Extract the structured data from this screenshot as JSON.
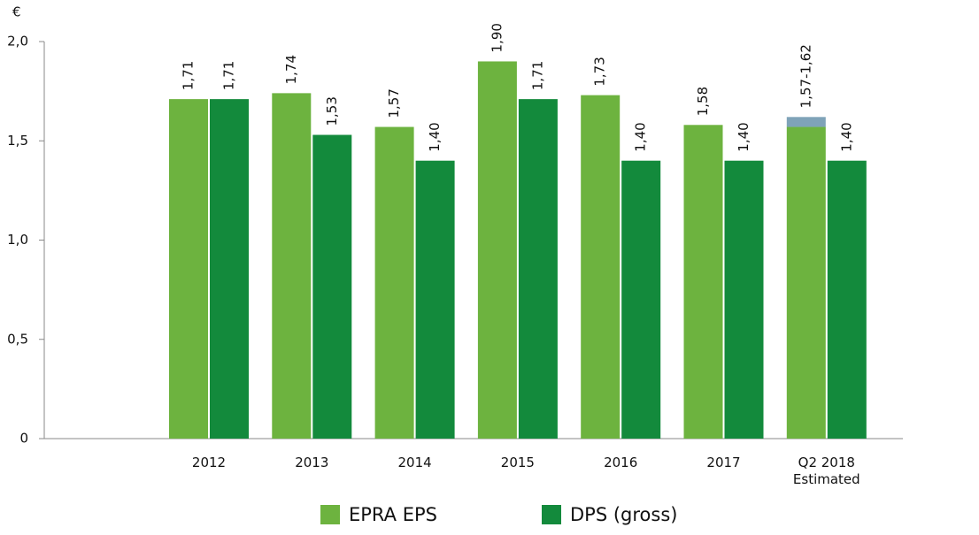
{
  "chart_data": {
    "type": "bar",
    "unit": "€",
    "categories": [
      "2012",
      "2013",
      "2014",
      "2015",
      "2016",
      "2017",
      "Q2 2018\nEstimated"
    ],
    "series": [
      {
        "name": "EPRA EPS",
        "color": "#6db33f",
        "values": [
          1.71,
          1.74,
          1.57,
          1.9,
          1.73,
          1.58,
          1.57
        ],
        "value_labels": [
          "1,71",
          "1,74",
          "1,57",
          "1,90",
          "1,73",
          "1,58",
          "1,57-1,62"
        ]
      },
      {
        "name": "DPS (gross)",
        "color": "#138a3c",
        "values": [
          1.71,
          1.53,
          1.4,
          1.71,
          1.4,
          1.4,
          1.4
        ],
        "value_labels": [
          "1,71",
          "1,53",
          "1,40",
          "1,71",
          "1,40",
          "1,40",
          "1,40"
        ]
      },
      {
        "color": "#7fa3b8",
        "stack_on": 0,
        "values": [
          null,
          null,
          null,
          null,
          null,
          null,
          0.05
        ]
      }
    ],
    "ylim": [
      0,
      2.0
    ],
    "yticks": [
      0,
      {
        "value": 0.5,
        "label": "0,5"
      },
      {
        "value": 1.0,
        "label": "1,0"
      },
      {
        "value": 1.5,
        "label": "1,5"
      },
      {
        "value": 2.0,
        "label": "2,0"
      }
    ],
    "grid": false,
    "legend": "bottom"
  }
}
